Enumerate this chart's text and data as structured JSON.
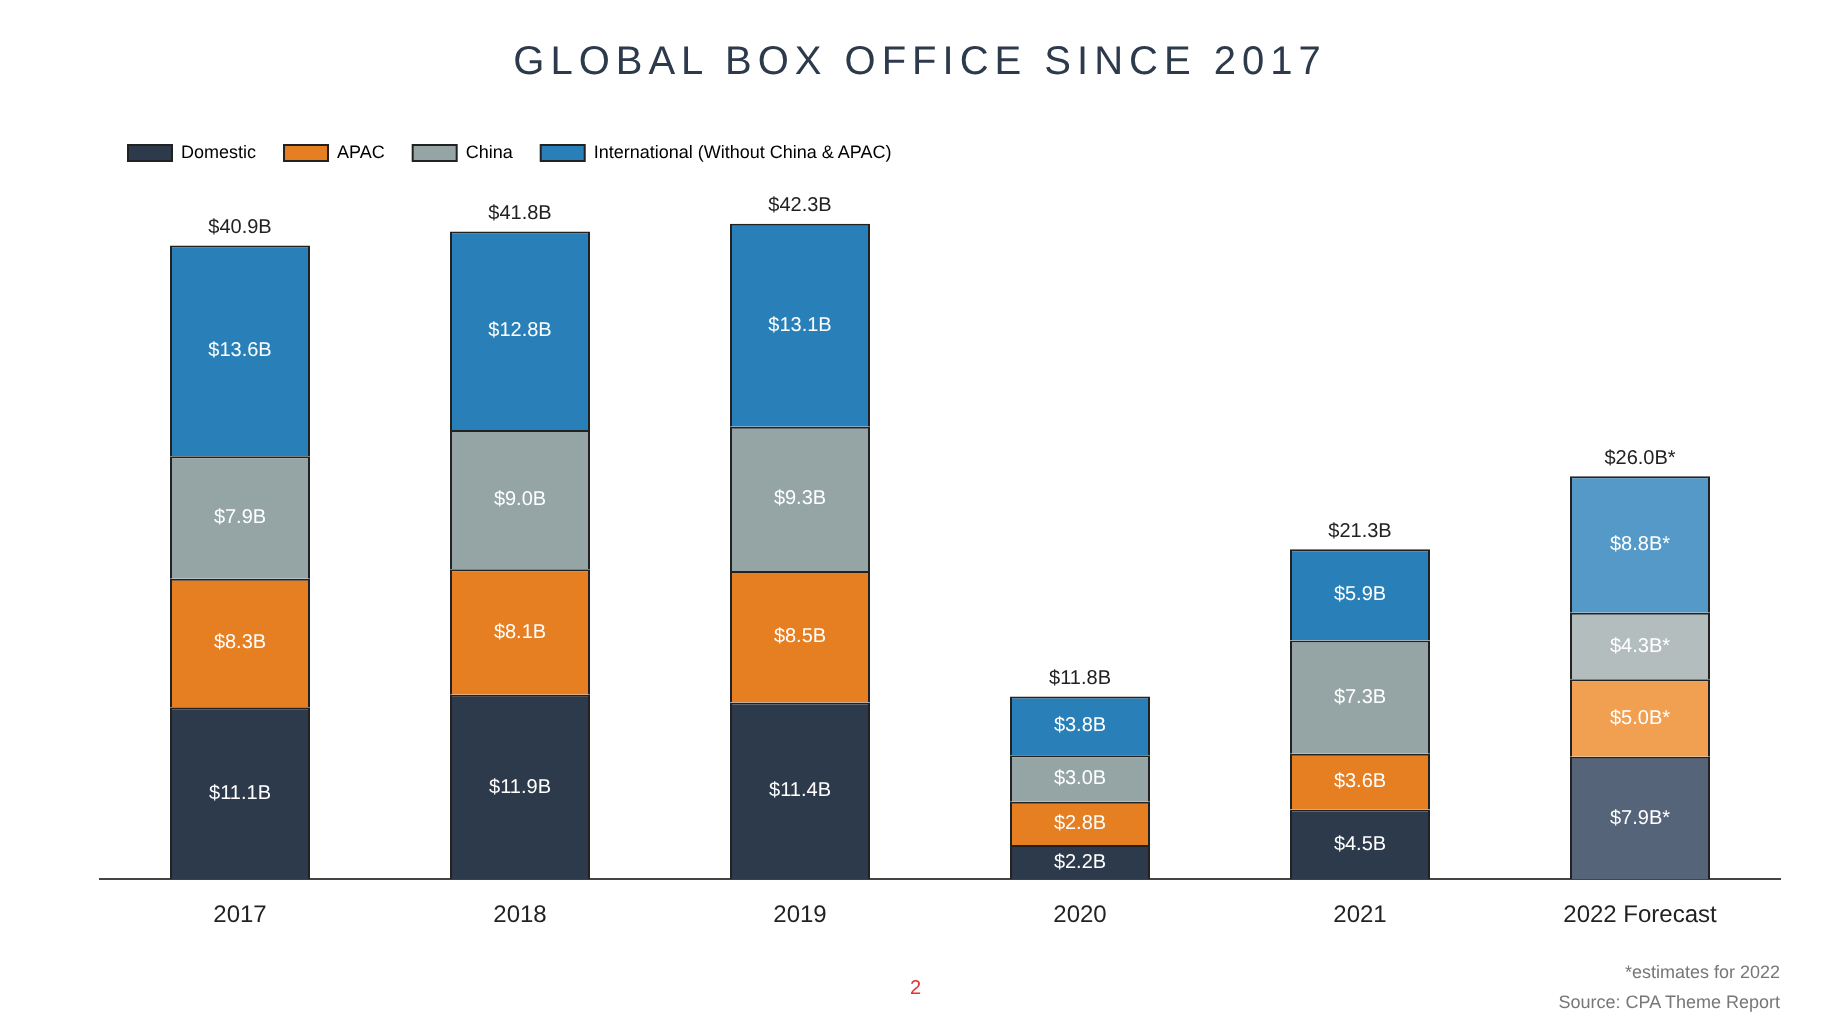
{
  "chart_data": {
    "type": "bar",
    "title": "GLOBAL BOX OFFICE SINCE 2017",
    "stacked": true,
    "legend": "top left",
    "grid": false,
    "tick_labels": "x",
    "categories": [
      "2017",
      "2018",
      "2019",
      "2020",
      "2021",
      "2022 Forecast"
    ],
    "series": [
      {
        "name": "Domestic",
        "color": "#2c3a4c",
        "colors": [
          "#2c3a4c",
          "#2c3a4c",
          "#2c3a4c",
          "#2c3a4c",
          "#2c3a4c",
          "#56647a"
        ],
        "values": [
          11.1,
          11.9,
          11.4,
          2.2,
          4.5,
          7.9
        ],
        "value_labels": [
          "$11.1B",
          "$11.9B",
          "$11.4B",
          "$2.2B",
          "$4.5B",
          "$7.9B*"
        ]
      },
      {
        "name": "APAC",
        "color": "#e67e22",
        "colors": [
          "#e67e22",
          "#e67e22",
          "#e67e22",
          "#e67e22",
          "#e67e22",
          "#f0a050"
        ],
        "values": [
          8.3,
          8.1,
          8.5,
          2.8,
          3.6,
          5.0
        ],
        "value_labels": [
          "$8.3B",
          "$8.1B",
          "$8.5B",
          "$2.8B",
          "$3.6B",
          "$5.0B*"
        ]
      },
      {
        "name": "China",
        "color": "#95a5a6",
        "colors": [
          "#95a5a6",
          "#95a5a6",
          "#95a5a6",
          "#95a5a6",
          "#95a5a6",
          "#b4bdbe"
        ],
        "values": [
          7.9,
          9.0,
          9.3,
          3.0,
          7.3,
          4.3
        ],
        "value_labels": [
          "$7.9B",
          "$9.0B",
          "$9.3B",
          "$3.0B",
          "$7.3B",
          "$4.3B*"
        ]
      },
      {
        "name": "International (Without China & APAC)",
        "color": "#2980b9",
        "colors": [
          "#2980b9",
          "#2980b9",
          "#2980b9",
          "#2980b9",
          "#2980b9",
          "#5499c7"
        ],
        "values": [
          13.6,
          12.8,
          13.1,
          3.8,
          5.9,
          8.8
        ],
        "value_labels": [
          "$13.6B",
          "$12.8B",
          "$13.1B",
          "$3.8B",
          "$5.9B",
          "$8.8B*"
        ]
      }
    ],
    "totals": [
      "$40.9B",
      "$41.8B",
      "$42.3B",
      "$11.8B",
      "$21.3B",
      "$26.0B*"
    ],
    "annotations": [
      "*estimates for 2022",
      "Source: CPA Theme Report",
      "2"
    ]
  }
}
